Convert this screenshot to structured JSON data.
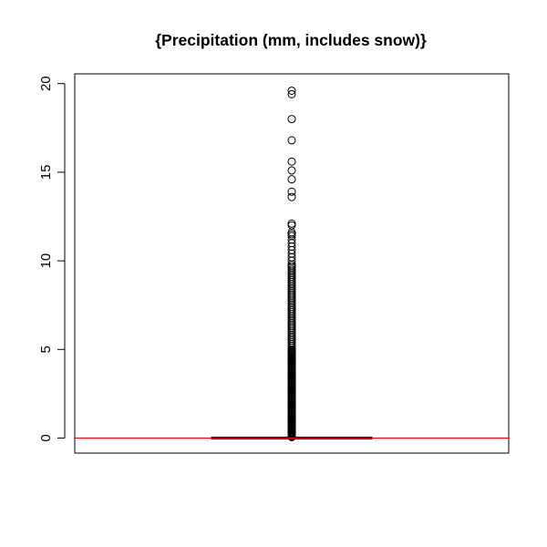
{
  "chart_data": {
    "type": "boxplot",
    "title": "{Precipitation (mm, includes snow)}",
    "ylim": [
      -0.85,
      20.55
    ],
    "y_ticks": [
      0,
      5,
      10,
      15,
      20
    ],
    "y_tick_labels": [
      "0",
      "5",
      "10",
      "15",
      "20"
    ],
    "box": {
      "min": 0,
      "q1": 0,
      "median": 0,
      "q3": 0,
      "max": 0
    },
    "reference_line": {
      "y": 0,
      "color": "#ff0000"
    },
    "outliers": [
      0.05,
      0.1,
      0.15,
      0.2,
      0.25,
      0.3,
      0.35,
      0.4,
      0.45,
      0.5,
      0.55,
      0.6,
      0.65,
      0.7,
      0.75,
      0.8,
      0.85,
      0.9,
      0.95,
      1.0,
      1.05,
      1.1,
      1.15,
      1.2,
      1.25,
      1.3,
      1.35,
      1.4,
      1.45,
      1.5,
      1.55,
      1.6,
      1.65,
      1.7,
      1.75,
      1.8,
      1.85,
      1.9,
      1.95,
      2.0,
      2.05,
      2.1,
      2.15,
      2.2,
      2.25,
      2.3,
      2.35,
      2.4,
      2.45,
      2.5,
      2.55,
      2.6,
      2.65,
      2.7,
      2.75,
      2.8,
      2.85,
      2.9,
      2.95,
      3.0,
      3.05,
      3.1,
      3.15,
      3.2,
      3.25,
      3.3,
      3.35,
      3.4,
      3.45,
      3.5,
      3.55,
      3.6,
      3.65,
      3.7,
      3.75,
      3.8,
      3.85,
      3.9,
      3.95,
      4.0,
      4.05,
      4.1,
      4.15,
      4.2,
      4.25,
      4.3,
      4.35,
      4.4,
      4.45,
      4.5,
      4.55,
      4.6,
      4.65,
      4.7,
      4.75,
      4.8,
      4.85,
      4.9,
      4.95,
      5.0,
      5.1,
      5.2,
      5.3,
      5.4,
      5.5,
      5.6,
      5.7,
      5.8,
      5.9,
      6.0,
      6.1,
      6.2,
      6.3,
      6.4,
      6.5,
      6.6,
      6.7,
      6.8,
      6.9,
      7.0,
      7.1,
      7.2,
      7.3,
      7.4,
      7.5,
      7.6,
      7.7,
      7.8,
      7.9,
      8.0,
      8.1,
      8.2,
      8.3,
      8.4,
      8.5,
      8.6,
      8.7,
      8.8,
      8.9,
      9.0,
      9.1,
      9.2,
      9.3,
      9.4,
      9.5,
      9.6,
      9.7,
      9.8,
      10.0,
      10.2,
      10.4,
      10.6,
      10.8,
      11.0,
      11.2,
      11.4,
      11.5,
      11.6,
      12.0,
      12.1,
      13.6,
      13.9,
      14.6,
      15.1,
      15.6,
      16.8,
      18.0,
      19.4,
      19.6
    ]
  }
}
